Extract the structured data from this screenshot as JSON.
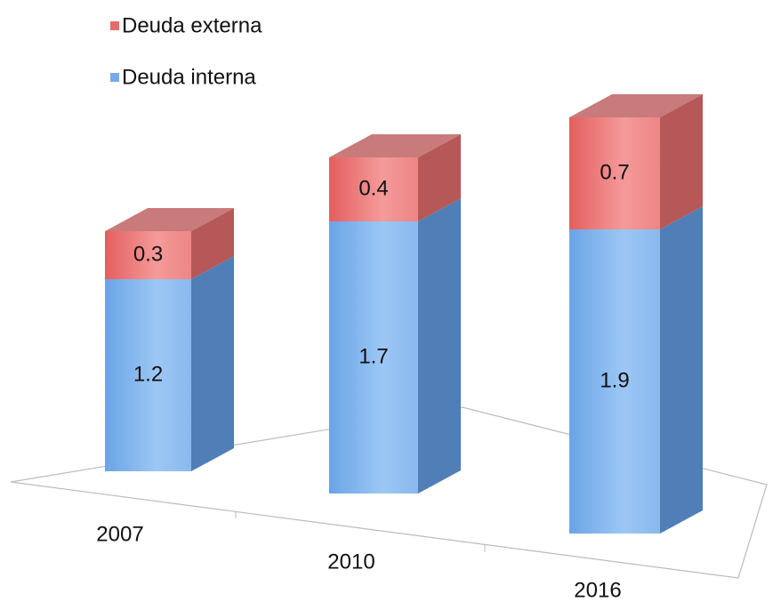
{
  "chart_data": {
    "type": "bar3d_stacked",
    "categories": [
      "2007",
      "2010",
      "2016"
    ],
    "series": [
      {
        "name": "Deuda interna",
        "color": "#74aaea",
        "values": [
          1.2,
          1.7,
          1.9
        ]
      },
      {
        "name": "Deuda externa",
        "color": "#e86b6b",
        "values": [
          0.3,
          0.4,
          0.7
        ]
      }
    ]
  }
}
